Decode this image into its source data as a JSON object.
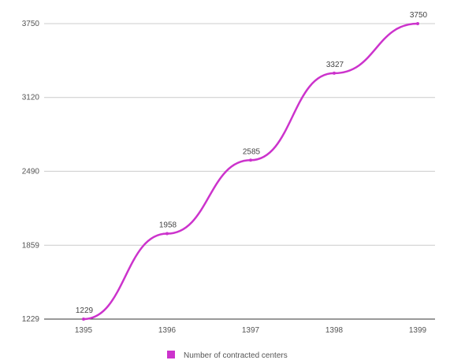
{
  "chart_data": {
    "type": "line",
    "title": "",
    "xlabel": "",
    "ylabel": "",
    "categories": [
      "1395",
      "1396",
      "1397",
      "1398",
      "1399"
    ],
    "y_ticks": [
      "1229",
      "1859",
      "2490",
      "3120",
      "3750"
    ],
    "ylim": [
      1229,
      3750
    ],
    "series": [
      {
        "name": "Number of contracted centers",
        "values": [
          1229,
          1958,
          2585,
          3327,
          3750
        ],
        "data_labels": [
          "1229",
          "1958",
          "2585",
          "3327",
          "3750"
        ]
      }
    ],
    "grid": true,
    "legend": "bottom",
    "colors": {
      "series": "#cc33cc",
      "grid": "#cccccc",
      "axis": "#333333"
    }
  }
}
